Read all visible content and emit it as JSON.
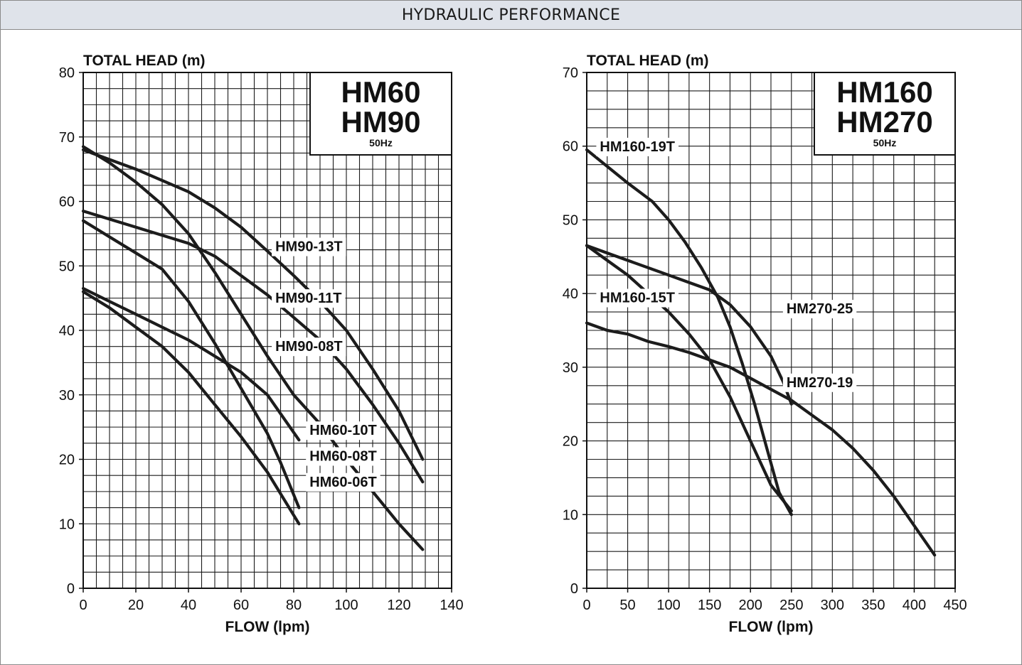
{
  "header": {
    "title": "HYDRAULIC PERFORMANCE"
  },
  "chart_data": [
    {
      "type": "line",
      "title_lines": [
        "HM60",
        "HM90"
      ],
      "frequency": "50Hz",
      "xlabel": "FLOW (lpm)",
      "ylabel": "TOTAL HEAD (m)",
      "xlim": [
        0,
        140
      ],
      "ylim": [
        0,
        80
      ],
      "xticks": [
        0,
        20,
        40,
        60,
        80,
        100,
        120,
        140
      ],
      "yticks": [
        0,
        10,
        20,
        30,
        40,
        50,
        60,
        70,
        80
      ],
      "grid": true,
      "series": [
        {
          "name": "HM90-13T",
          "x": [
            0,
            20,
            40,
            50,
            60,
            70,
            80,
            90,
            100,
            110,
            120,
            129
          ],
          "y": [
            68,
            65,
            61.5,
            59,
            56,
            52.3,
            48.5,
            44.5,
            40,
            34,
            27.5,
            20
          ],
          "label_at": [
            73,
            52.5
          ]
        },
        {
          "name": "HM90-11T",
          "x": [
            0,
            20,
            40,
            50,
            60,
            70,
            80,
            90,
            100,
            110,
            120,
            129
          ],
          "y": [
            58.5,
            56,
            53.5,
            51.5,
            48.5,
            45.5,
            42,
            38.5,
            34,
            28.5,
            22.5,
            16.5
          ],
          "label_at": [
            73,
            44.5
          ]
        },
        {
          "name": "HM90-08T",
          "x": [
            0,
            10,
            20,
            30,
            40,
            50,
            60,
            70,
            80,
            90,
            100,
            110,
            120,
            129
          ],
          "y": [
            68.5,
            66,
            63,
            59.5,
            55,
            49,
            42.5,
            36,
            30,
            25.5,
            20,
            15,
            10,
            6
          ],
          "label_at": [
            73,
            37
          ]
        },
        {
          "name": "HM60-10T",
          "x": [
            0,
            10,
            20,
            30,
            40,
            50,
            60,
            70,
            75,
            82
          ],
          "y": [
            57,
            54.5,
            52,
            49.5,
            44.5,
            38,
            31,
            24,
            19.5,
            12.5
          ],
          "label_at": [
            86,
            24
          ]
        },
        {
          "name": "HM60-08T",
          "x": [
            0,
            10,
            20,
            30,
            40,
            50,
            60,
            70,
            82
          ],
          "y": [
            46.5,
            44.5,
            42.5,
            40.5,
            38.5,
            36,
            33.5,
            30,
            23
          ],
          "label_at": [
            86,
            20
          ]
        },
        {
          "name": "HM60-06T",
          "x": [
            0,
            10,
            20,
            30,
            40,
            50,
            60,
            70,
            82
          ],
          "y": [
            46,
            43.5,
            40.5,
            37.5,
            33.5,
            28.5,
            23.5,
            18,
            10
          ],
          "label_at": [
            86,
            16
          ]
        }
      ]
    },
    {
      "type": "line",
      "title_lines": [
        "HM160",
        "HM270"
      ],
      "frequency": "50Hz",
      "xlabel": "FLOW (lpm)",
      "ylabel": "TOTAL HEAD (m)",
      "xlim": [
        0,
        450
      ],
      "ylim": [
        0,
        70
      ],
      "xticks": [
        0,
        50,
        100,
        150,
        200,
        250,
        300,
        350,
        400,
        450
      ],
      "yticks": [
        0,
        10,
        20,
        30,
        40,
        50,
        60,
        70
      ],
      "grid": true,
      "series": [
        {
          "name": "HM160-19T",
          "x": [
            0,
            50,
            80,
            100,
            120,
            140,
            160,
            175,
            190,
            205,
            220,
            235,
            250
          ],
          "y": [
            59.5,
            55,
            52.5,
            50,
            47,
            43.5,
            39.5,
            35.5,
            30.5,
            25,
            19,
            13,
            10
          ],
          "label_at": [
            16,
            59.5
          ]
        },
        {
          "name": "HM160-15T",
          "x": [
            0,
            25,
            50,
            75,
            100,
            125,
            150,
            175,
            200,
            225,
            240,
            250
          ],
          "y": [
            46.5,
            45.5,
            44.5,
            43.5,
            42.5,
            41.5,
            40.5,
            38.5,
            35.5,
            31.5,
            28,
            25
          ],
          "label_at": [
            16,
            39
          ]
        },
        {
          "name": "HM270-25",
          "x": [
            0,
            25,
            50,
            75,
            100,
            125,
            150,
            175,
            200,
            225,
            250
          ],
          "y": [
            46.5,
            44.5,
            42.5,
            40,
            37.5,
            34.5,
            31,
            26,
            20,
            14,
            10.5
          ],
          "label_at": [
            244,
            37.5
          ]
        },
        {
          "name": "HM270-19",
          "x": [
            0,
            25,
            50,
            75,
            100,
            125,
            150,
            175,
            200,
            225,
            250,
            275,
            300,
            325,
            350,
            375,
            400,
            425
          ],
          "y": [
            36,
            35,
            34.5,
            33.5,
            32.8,
            32,
            31,
            30,
            28.5,
            27,
            25.5,
            23.5,
            21.5,
            19,
            16,
            12.5,
            8.5,
            4.5
          ],
          "label_at": [
            244,
            27.5
          ]
        }
      ]
    }
  ]
}
